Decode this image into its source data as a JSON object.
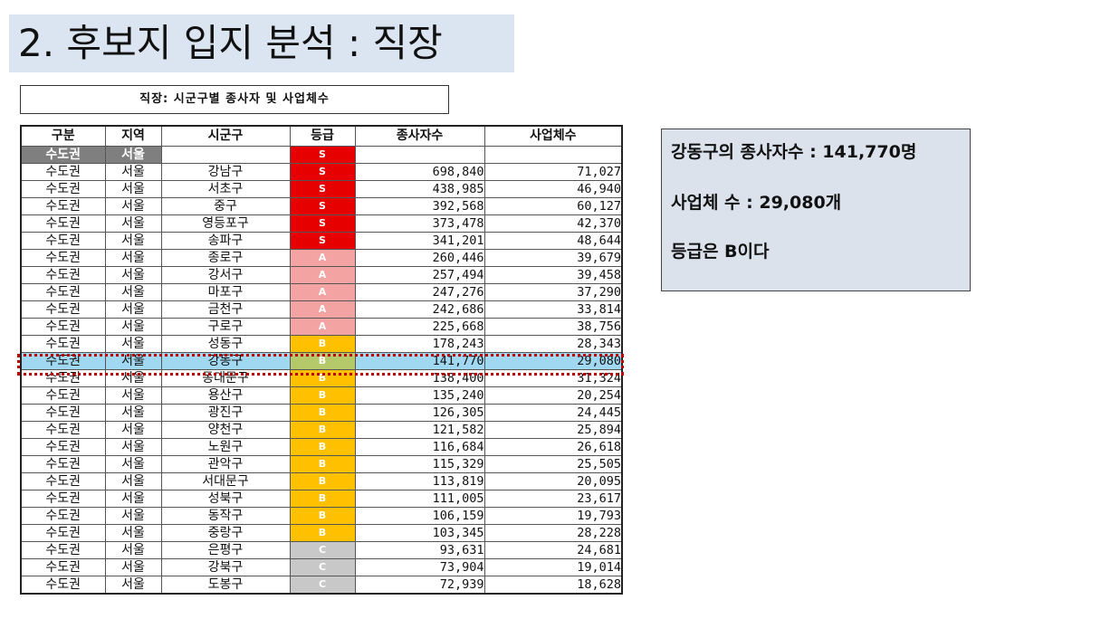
{
  "title": "2. 후보지 입지 분석 : 직장",
  "caption": "직장: 시군구별 종사자 및 사업체수",
  "table": {
    "headers": [
      "구분",
      "지역",
      "시군구",
      "등급",
      "종사자수",
      "사업체수"
    ],
    "subheader": [
      "수도권",
      "서울"
    ],
    "rows": [
      [
        "수도권",
        "서울",
        "강남구",
        "S",
        "698,840",
        "71,027"
      ],
      [
        "수도권",
        "서울",
        "서초구",
        "S",
        "438,985",
        "46,940"
      ],
      [
        "수도권",
        "서울",
        "중구",
        "S",
        "392,568",
        "60,127"
      ],
      [
        "수도권",
        "서울",
        "영등포구",
        "S",
        "373,478",
        "42,370"
      ],
      [
        "수도권",
        "서울",
        "송파구",
        "S",
        "341,201",
        "48,644"
      ],
      [
        "수도권",
        "서울",
        "종로구",
        "A",
        "260,446",
        "39,679"
      ],
      [
        "수도권",
        "서울",
        "강서구",
        "A",
        "257,494",
        "39,458"
      ],
      [
        "수도권",
        "서울",
        "마포구",
        "A",
        "247,276",
        "37,290"
      ],
      [
        "수도권",
        "서울",
        "금천구",
        "A",
        "242,686",
        "33,814"
      ],
      [
        "수도권",
        "서울",
        "구로구",
        "A",
        "225,668",
        "38,756"
      ],
      [
        "수도권",
        "서울",
        "성동구",
        "B",
        "178,243",
        "28,343"
      ],
      [
        "수도권",
        "서울",
        "강동구",
        "B",
        "141,770",
        "29,080"
      ],
      [
        "수도권",
        "서울",
        "동대문구",
        "B",
        "138,400",
        "31,324"
      ],
      [
        "수도권",
        "서울",
        "용산구",
        "B",
        "135,240",
        "20,254"
      ],
      [
        "수도권",
        "서울",
        "광진구",
        "B",
        "126,305",
        "24,445"
      ],
      [
        "수도권",
        "서울",
        "양천구",
        "B",
        "121,582",
        "25,894"
      ],
      [
        "수도권",
        "서울",
        "노원구",
        "B",
        "116,684",
        "26,618"
      ],
      [
        "수도권",
        "서울",
        "관악구",
        "B",
        "115,329",
        "25,505"
      ],
      [
        "수도권",
        "서울",
        "서대문구",
        "B",
        "113,819",
        "20,095"
      ],
      [
        "수도권",
        "서울",
        "성북구",
        "B",
        "111,005",
        "23,617"
      ],
      [
        "수도권",
        "서울",
        "동작구",
        "B",
        "106,159",
        "19,793"
      ],
      [
        "수도권",
        "서울",
        "중랑구",
        "B",
        "103,345",
        "28,228"
      ],
      [
        "수도권",
        "서울",
        "은평구",
        "C",
        "93,631",
        "24,681"
      ],
      [
        "수도권",
        "서울",
        "강북구",
        "C",
        "73,904",
        "19,014"
      ],
      [
        "수도권",
        "서울",
        "도봉구",
        "C",
        "72,939",
        "18,628"
      ]
    ],
    "highlighted_district": "강동구"
  },
  "info": {
    "line1": "강동구의 종사자수 : 141,770명",
    "line2": "사업체 수 : 29,080개",
    "line3": "등급은 B이다"
  },
  "colors": {
    "title_bg": "#dbe5f1",
    "grade_S": "#e60000",
    "grade_A": "#f4a3a3",
    "grade_B": "#ffc000",
    "grade_C": "#c8c8c8",
    "highlight_row": "#9fd8f0",
    "highlight_border": "#c00000",
    "info_bg": "#dbe2ec"
  }
}
